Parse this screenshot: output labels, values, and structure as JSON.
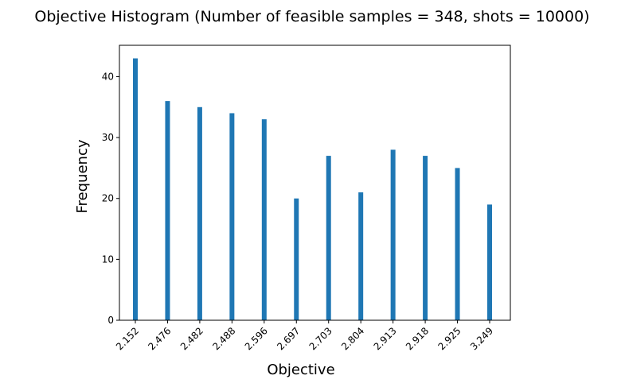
{
  "chart_data": {
    "type": "bar",
    "title": "Objective Histogram (Number of feasible samples = 348, shots = 10000)",
    "xlabel": "Objective",
    "ylabel": "Frequency",
    "categories": [
      "2.152",
      "2.476",
      "2.482",
      "2.488",
      "2.596",
      "2.697",
      "2.703",
      "2.804",
      "2.913",
      "2.918",
      "2.925",
      "3.249"
    ],
    "values": [
      43,
      36,
      35,
      34,
      33,
      20,
      27,
      21,
      28,
      27,
      25,
      19
    ],
    "ylim": [
      0,
      45.15
    ],
    "yticks": [
      0,
      10,
      20,
      30,
      40
    ],
    "grid": false,
    "bar_color": "#1f77b4"
  }
}
